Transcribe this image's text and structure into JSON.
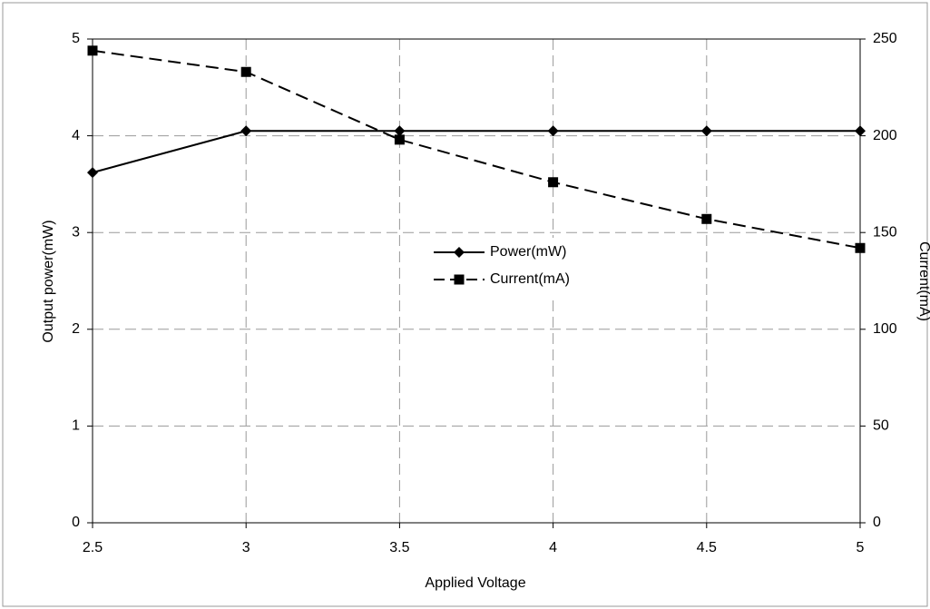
{
  "chart_data": {
    "type": "line",
    "x_label": "Applied Voltage",
    "y_label": "Output power(mW)",
    "y2_label": "Current(mA)",
    "x": [
      2.5,
      3,
      3.5,
      4,
      4.5,
      5
    ],
    "series": [
      {
        "name": "Power(mW)",
        "color": "#000000",
        "marker": "diamond",
        "line_style": "solid",
        "values": [
          3.62,
          4.05,
          4.05,
          4.05,
          4.05,
          4.05
        ]
      },
      {
        "name": "Current(mA)",
        "color": "#000000",
        "marker": "square",
        "line_style": "dashed",
        "axis": "y2",
        "values": [
          244,
          233,
          198,
          176,
          157,
          142
        ]
      }
    ],
    "xlim": [
      2.5,
      5
    ],
    "xticks": [
      2.5,
      3,
      3.5,
      4,
      4.5,
      5
    ],
    "ylim": [
      0,
      5
    ],
    "yticks": [
      0,
      1,
      2,
      3,
      4,
      5
    ],
    "y2lim": [
      0,
      250
    ],
    "y2ticks": [
      0,
      50,
      100,
      150,
      200,
      250
    ],
    "grid": true,
    "legend": "center"
  }
}
